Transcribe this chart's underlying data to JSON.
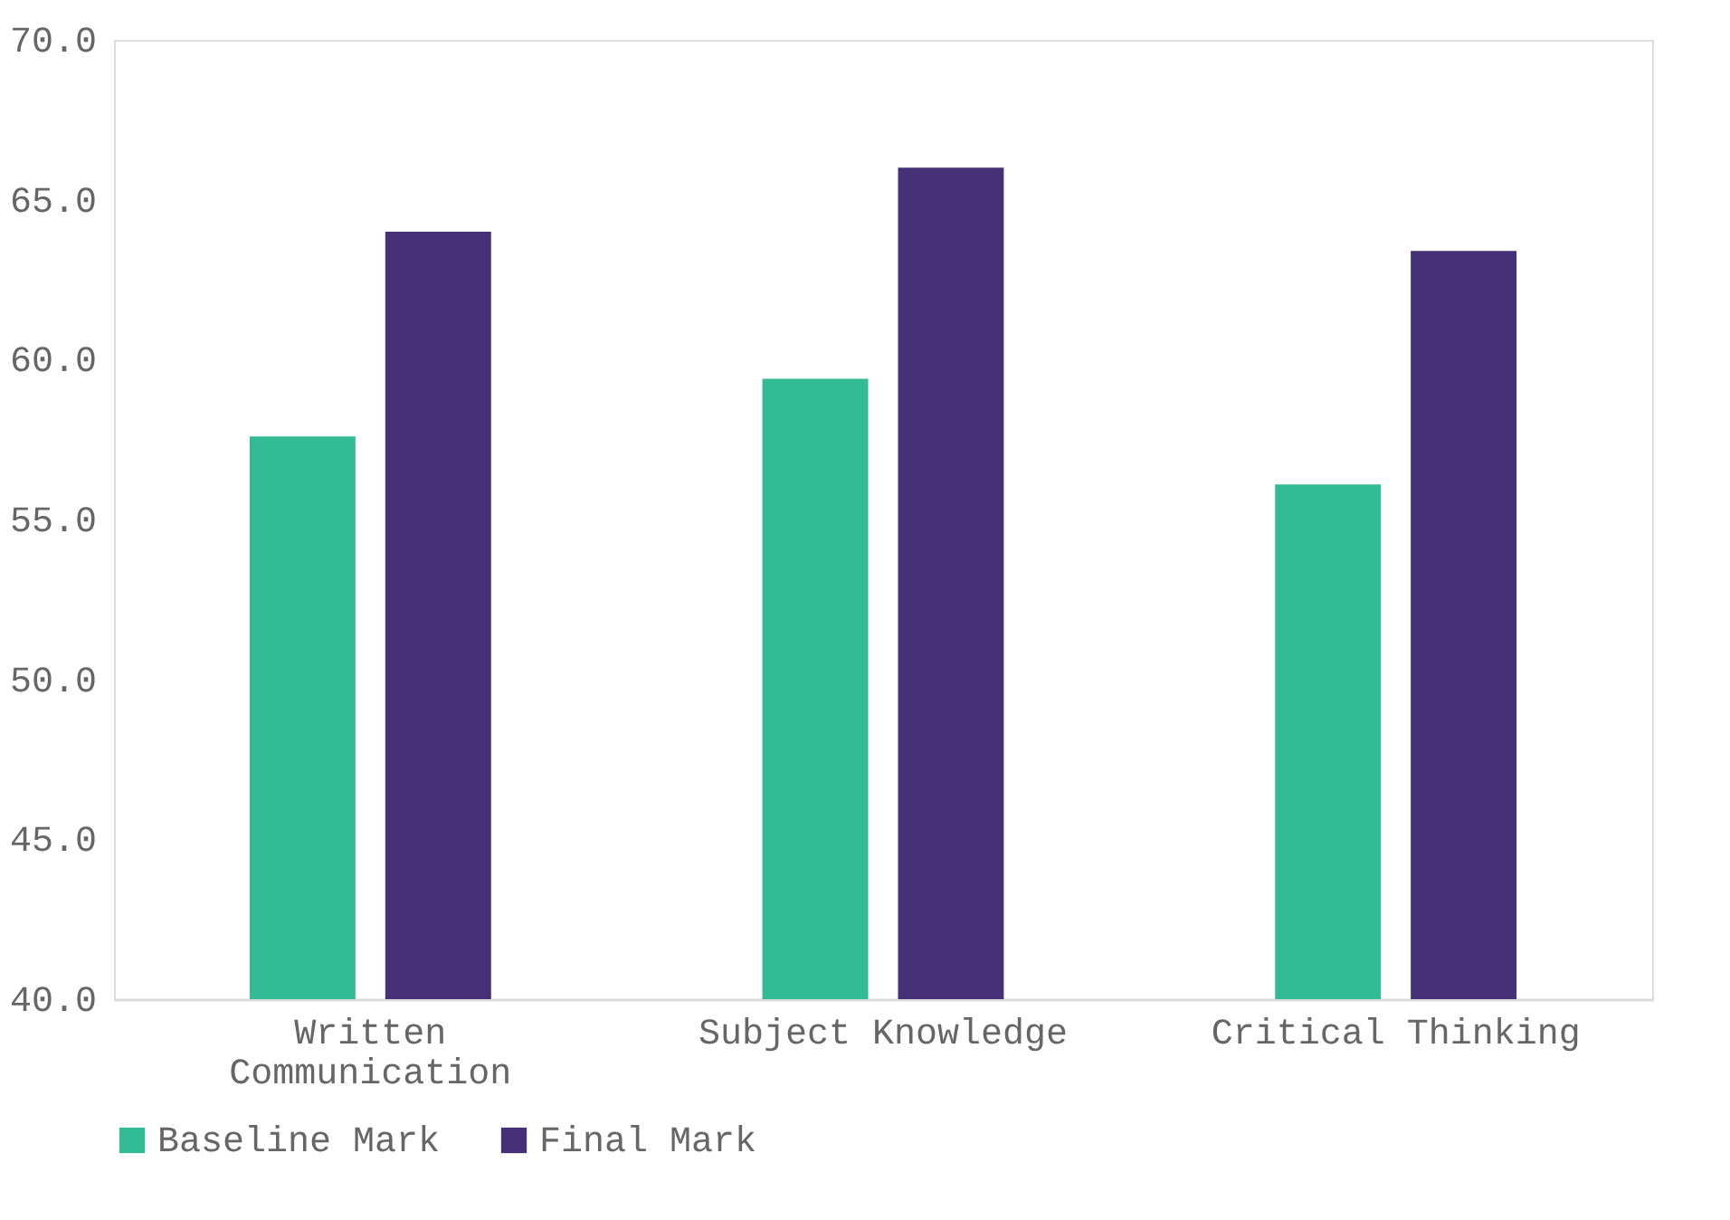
{
  "chart_data": {
    "type": "bar",
    "categories": [
      "Written Communication",
      "Subject Knowledge",
      "Critical Thinking"
    ],
    "series": [
      {
        "name": "Baseline Mark",
        "color": "#33bb96",
        "values": [
          57.6,
          59.4,
          56.1
        ]
      },
      {
        "name": "Final Mark",
        "color": "#463176",
        "values": [
          64.0,
          66.0,
          63.4
        ]
      }
    ],
    "ylim": [
      40,
      70
    ],
    "yticks": [
      {
        "value": 40,
        "label": "40.0"
      },
      {
        "value": 45,
        "label": "45.0"
      },
      {
        "value": 50,
        "label": "50.0"
      },
      {
        "value": 55,
        "label": "55.0"
      },
      {
        "value": 60,
        "label": "60.0"
      },
      {
        "value": 65,
        "label": "65.0"
      },
      {
        "value": 70,
        "label": "70.0"
      }
    ],
    "grid": false,
    "legend": "bottom"
  }
}
